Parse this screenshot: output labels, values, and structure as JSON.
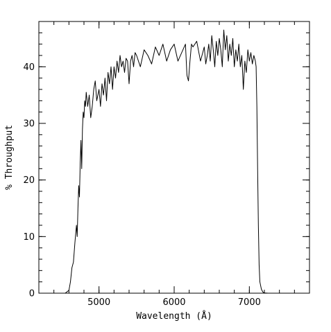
{
  "chart_data": {
    "type": "line",
    "title": "",
    "xlabel": "Wavelength (Å)",
    "ylabel": "% Throughput",
    "xlim": [
      4200,
      7800
    ],
    "ylim": [
      0,
      48
    ],
    "xticks": [
      5000,
      6000,
      7000
    ],
    "xtick_labels": [
      "5000",
      "6000",
      "7000"
    ],
    "yticks": [
      0,
      10,
      20,
      30,
      40
    ],
    "ytick_labels": [
      "0",
      "10",
      "20",
      "30",
      "40"
    ],
    "x_minor_step": 200,
    "y_minor_step": 2,
    "grid": false,
    "legend": "none",
    "series": [
      {
        "color": "#000000",
        "x": [
          4200,
          4550,
          4600,
          4620,
          4640,
          4660,
          4680,
          4700,
          4710,
          4720,
          4730,
          4740,
          4750,
          4760,
          4770,
          4780,
          4790,
          4800,
          4810,
          4820,
          4830,
          4850,
          4870,
          4890,
          4910,
          4930,
          4950,
          4970,
          5000,
          5020,
          5040,
          5060,
          5080,
          5100,
          5120,
          5140,
          5160,
          5180,
          5200,
          5220,
          5240,
          5260,
          5280,
          5300,
          5320,
          5340,
          5360,
          5380,
          5400,
          5420,
          5440,
          5460,
          5480,
          5500,
          5550,
          5600,
          5650,
          5700,
          5750,
          5800,
          5850,
          5900,
          5950,
          6000,
          6050,
          6100,
          6150,
          6170,
          6190,
          6210,
          6230,
          6250,
          6300,
          6350,
          6400,
          6420,
          6440,
          6460,
          6480,
          6500,
          6520,
          6540,
          6560,
          6580,
          6600,
          6620,
          6640,
          6660,
          6680,
          6700,
          6720,
          6740,
          6760,
          6780,
          6800,
          6820,
          6840,
          6860,
          6880,
          6900,
          6920,
          6940,
          6960,
          6980,
          7000,
          7020,
          7040,
          7060,
          7080,
          7090,
          7100,
          7110,
          7120,
          7130,
          7140,
          7160,
          7180,
          7200,
          7250,
          7800
        ],
        "y": [
          0,
          0,
          0.5,
          2,
          4.5,
          5.5,
          9,
          12,
          10,
          15,
          19,
          17,
          23,
          27,
          22,
          29,
          32,
          31,
          34,
          33,
          35.5,
          33,
          35,
          31,
          33,
          36,
          37.5,
          34,
          36,
          33,
          37,
          35,
          38,
          34,
          39,
          37,
          40,
          36,
          40,
          38,
          41,
          39,
          42,
          40,
          41,
          39,
          41.5,
          41,
          37,
          41,
          42,
          40,
          42.5,
          42,
          40,
          43,
          42,
          40.5,
          43.5,
          42,
          44,
          41,
          43,
          44,
          41,
          42.5,
          44,
          38.5,
          37.5,
          41,
          44,
          43.5,
          44.5,
          41,
          43.5,
          40.5,
          42,
          44,
          41,
          45.5,
          43,
          40,
          44.5,
          42,
          45,
          43,
          40,
          46.5,
          43,
          45.5,
          41,
          44,
          42,
          45,
          40,
          43,
          41,
          44,
          40,
          42,
          36,
          41,
          39,
          43,
          41,
          42.5,
          40.5,
          42,
          41,
          40,
          33,
          22,
          12,
          5,
          2,
          0.7,
          0.2,
          0.05,
          0,
          0
        ]
      }
    ]
  }
}
